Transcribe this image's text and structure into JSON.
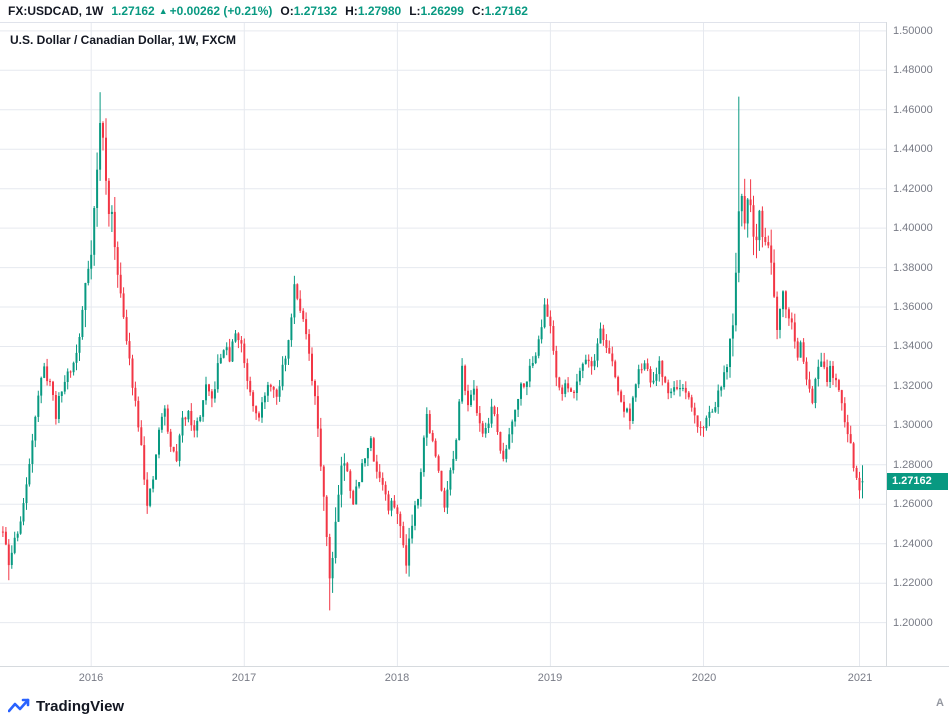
{
  "topbar": {
    "symbol": "FX:USDCAD, 1W",
    "price": "1.27162",
    "arrow": "▲",
    "change": "+0.00262 (+0.21%)",
    "ohlc": [
      {
        "label": "O:",
        "value": "1.27132"
      },
      {
        "label": "H:",
        "value": "1.27980"
      },
      {
        "label": "L:",
        "value": "1.26299"
      },
      {
        "label": "C:",
        "value": "1.27162"
      }
    ]
  },
  "legend": "U.S. Dollar / Canadian Dollar, 1W, FXCM",
  "price_label": {
    "value": "1.27162",
    "color": "#089981"
  },
  "footer": {
    "brand": "TradingView"
  },
  "auto_button": "A",
  "colors": {
    "up": "#089981",
    "down": "#f23645",
    "text": "#131722",
    "muted": "#787b86",
    "grid": "#e6e9ef",
    "brand_blue": "#2962ff"
  },
  "chart_data": {
    "type": "candlestick",
    "title": "U.S. Dollar / Canadian Dollar, 1W, FXCM",
    "symbol": "FX:USDCAD",
    "timeframe": "1W",
    "source": "FXCM",
    "up_color": "#089981",
    "down_color": "#f23645",
    "ylim": [
      1.178,
      1.504
    ],
    "y_ticks": [
      "1.50000",
      "1.48000",
      "1.46000",
      "1.44000",
      "1.42000",
      "1.40000",
      "1.38000",
      "1.36000",
      "1.34000",
      "1.32000",
      "1.30000",
      "1.28000",
      "1.26000",
      "1.24000",
      "1.22000",
      "1.20000"
    ],
    "x_ticks": [
      {
        "label": "2016",
        "week": 30
      },
      {
        "label": "2017",
        "week": 82
      },
      {
        "label": "2018",
        "week": 134
      },
      {
        "label": "2019",
        "week": 186
      },
      {
        "label": "2020",
        "week": 238
      },
      {
        "label": "2021",
        "week": 291
      }
    ],
    "weeks_total": 293,
    "weeks_visible": 301,
    "last_candle": {
      "open": 1.27132,
      "high": 1.2798,
      "low": 1.26299,
      "close": 1.27162
    },
    "close_anchors": [
      [
        0,
        1.246
      ],
      [
        2,
        1.229
      ],
      [
        4,
        1.242
      ],
      [
        6,
        1.252
      ],
      [
        8,
        1.268
      ],
      [
        10,
        1.295
      ],
      [
        12,
        1.316
      ],
      [
        14,
        1.328
      ],
      [
        16,
        1.322
      ],
      [
        18,
        1.306
      ],
      [
        20,
        1.318
      ],
      [
        22,
        1.327
      ],
      [
        24,
        1.331
      ],
      [
        26,
        1.344
      ],
      [
        28,
        1.372
      ],
      [
        30,
        1.392
      ],
      [
        32,
        1.428
      ],
      [
        33,
        1.452
      ],
      [
        34,
        1.446
      ],
      [
        35,
        1.422
      ],
      [
        37,
        1.402
      ],
      [
        39,
        1.382
      ],
      [
        41,
        1.352
      ],
      [
        43,
        1.332
      ],
      [
        45,
        1.312
      ],
      [
        47,
        1.292
      ],
      [
        49,
        1.258
      ],
      [
        51,
        1.272
      ],
      [
        53,
        1.298
      ],
      [
        55,
        1.308
      ],
      [
        57,
        1.288
      ],
      [
        59,
        1.284
      ],
      [
        61,
        1.302
      ],
      [
        63,
        1.309
      ],
      [
        65,
        1.296
      ],
      [
        67,
        1.306
      ],
      [
        69,
        1.318
      ],
      [
        71,
        1.312
      ],
      [
        73,
        1.329
      ],
      [
        75,
        1.34
      ],
      [
        77,
        1.334
      ],
      [
        79,
        1.347
      ],
      [
        81,
        1.341
      ],
      [
        83,
        1.324
      ],
      [
        85,
        1.312
      ],
      [
        87,
        1.306
      ],
      [
        89,
        1.314
      ],
      [
        91,
        1.322
      ],
      [
        93,
        1.312
      ],
      [
        95,
        1.329
      ],
      [
        97,
        1.342
      ],
      [
        99,
        1.372
      ],
      [
        101,
        1.361
      ],
      [
        103,
        1.345
      ],
      [
        105,
        1.322
      ],
      [
        107,
        1.299
      ],
      [
        109,
        1.266
      ],
      [
        111,
        1.223
      ],
      [
        113,
        1.252
      ],
      [
        115,
        1.281
      ],
      [
        117,
        1.276
      ],
      [
        119,
        1.262
      ],
      [
        121,
        1.272
      ],
      [
        123,
        1.286
      ],
      [
        125,
        1.291
      ],
      [
        127,
        1.277
      ],
      [
        129,
        1.271
      ],
      [
        131,
        1.257
      ],
      [
        133,
        1.261
      ],
      [
        135,
        1.247
      ],
      [
        137,
        1.233
      ],
      [
        139,
        1.252
      ],
      [
        141,
        1.266
      ],
      [
        143,
        1.294
      ],
      [
        144,
        1.305
      ],
      [
        146,
        1.291
      ],
      [
        148,
        1.276
      ],
      [
        150,
        1.261
      ],
      [
        152,
        1.276
      ],
      [
        154,
        1.291
      ],
      [
        156,
        1.328
      ],
      [
        158,
        1.313
      ],
      [
        160,
        1.316
      ],
      [
        162,
        1.301
      ],
      [
        164,
        1.296
      ],
      [
        166,
        1.31
      ],
      [
        168,
        1.296
      ],
      [
        170,
        1.281
      ],
      [
        172,
        1.296
      ],
      [
        174,
        1.31
      ],
      [
        176,
        1.32
      ],
      [
        178,
        1.325
      ],
      [
        180,
        1.331
      ],
      [
        182,
        1.345
      ],
      [
        184,
        1.359
      ],
      [
        186,
        1.351
      ],
      [
        188,
        1.326
      ],
      [
        190,
        1.316
      ],
      [
        192,
        1.321
      ],
      [
        194,
        1.316
      ],
      [
        196,
        1.33
      ],
      [
        198,
        1.335
      ],
      [
        200,
        1.33
      ],
      [
        202,
        1.34
      ],
      [
        203,
        1.349
      ],
      [
        205,
        1.34
      ],
      [
        207,
        1.331
      ],
      [
        209,
        1.317
      ],
      [
        211,
        1.308
      ],
      [
        213,
        1.305
      ],
      [
        215,
        1.321
      ],
      [
        217,
        1.331
      ],
      [
        219,
        1.326
      ],
      [
        221,
        1.321
      ],
      [
        223,
        1.33
      ],
      [
        225,
        1.321
      ],
      [
        227,
        1.316
      ],
      [
        229,
        1.321
      ],
      [
        231,
        1.316
      ],
      [
        233,
        1.312
      ],
      [
        235,
        1.304
      ],
      [
        237,
        1.298
      ],
      [
        239,
        1.303
      ],
      [
        241,
        1.308
      ],
      [
        243,
        1.316
      ],
      [
        245,
        1.324
      ],
      [
        247,
        1.341
      ],
      [
        249,
        1.371
      ],
      [
        250,
        1.404
      ],
      [
        251,
        1.411
      ],
      [
        252,
        1.401
      ],
      [
        253,
        1.419
      ],
      [
        254,
        1.41
      ],
      [
        255,
        1.401
      ],
      [
        256,
        1.393
      ],
      [
        257,
        1.408
      ],
      [
        258,
        1.4
      ],
      [
        259,
        1.391
      ],
      [
        260,
        1.398
      ],
      [
        261,
        1.381
      ],
      [
        262,
        1.371
      ],
      [
        263,
        1.352
      ],
      [
        264,
        1.361
      ],
      [
        265,
        1.37
      ],
      [
        266,
        1.361
      ],
      [
        267,
        1.356
      ],
      [
        268,
        1.351
      ],
      [
        269,
        1.341
      ],
      [
        270,
        1.336
      ],
      [
        271,
        1.34
      ],
      [
        272,
        1.331
      ],
      [
        273,
        1.326
      ],
      [
        274,
        1.321
      ],
      [
        275,
        1.314
      ],
      [
        276,
        1.321
      ],
      [
        277,
        1.33
      ],
      [
        278,
        1.335
      ],
      [
        279,
        1.33
      ],
      [
        280,
        1.325
      ],
      [
        281,
        1.33
      ],
      [
        282,
        1.325
      ],
      [
        283,
        1.32
      ],
      [
        284,
        1.315
      ],
      [
        285,
        1.31
      ],
      [
        286,
        1.301
      ],
      [
        287,
        1.296
      ],
      [
        288,
        1.291
      ],
      [
        289,
        1.281
      ],
      [
        290,
        1.272
      ],
      [
        291,
        1.266
      ],
      [
        292,
        1.27162
      ]
    ],
    "volatility_zones": [
      [
        28,
        42,
        2.2
      ],
      [
        105,
        116,
        1.8
      ],
      [
        134,
        142,
        1.4
      ],
      [
        246,
        263,
        2.3
      ]
    ],
    "wick_overrides": [
      {
        "week": 2,
        "low": 1.2215
      },
      {
        "week": 33,
        "high": 1.4689
      },
      {
        "week": 111,
        "low": 1.2062
      },
      {
        "week": 137,
        "low": 1.2248
      },
      {
        "week": 250,
        "high": 1.4667
      },
      {
        "week": 291,
        "low": 1.2634
      }
    ],
    "noise_seed": 11,
    "base_amp": 0.005
  }
}
